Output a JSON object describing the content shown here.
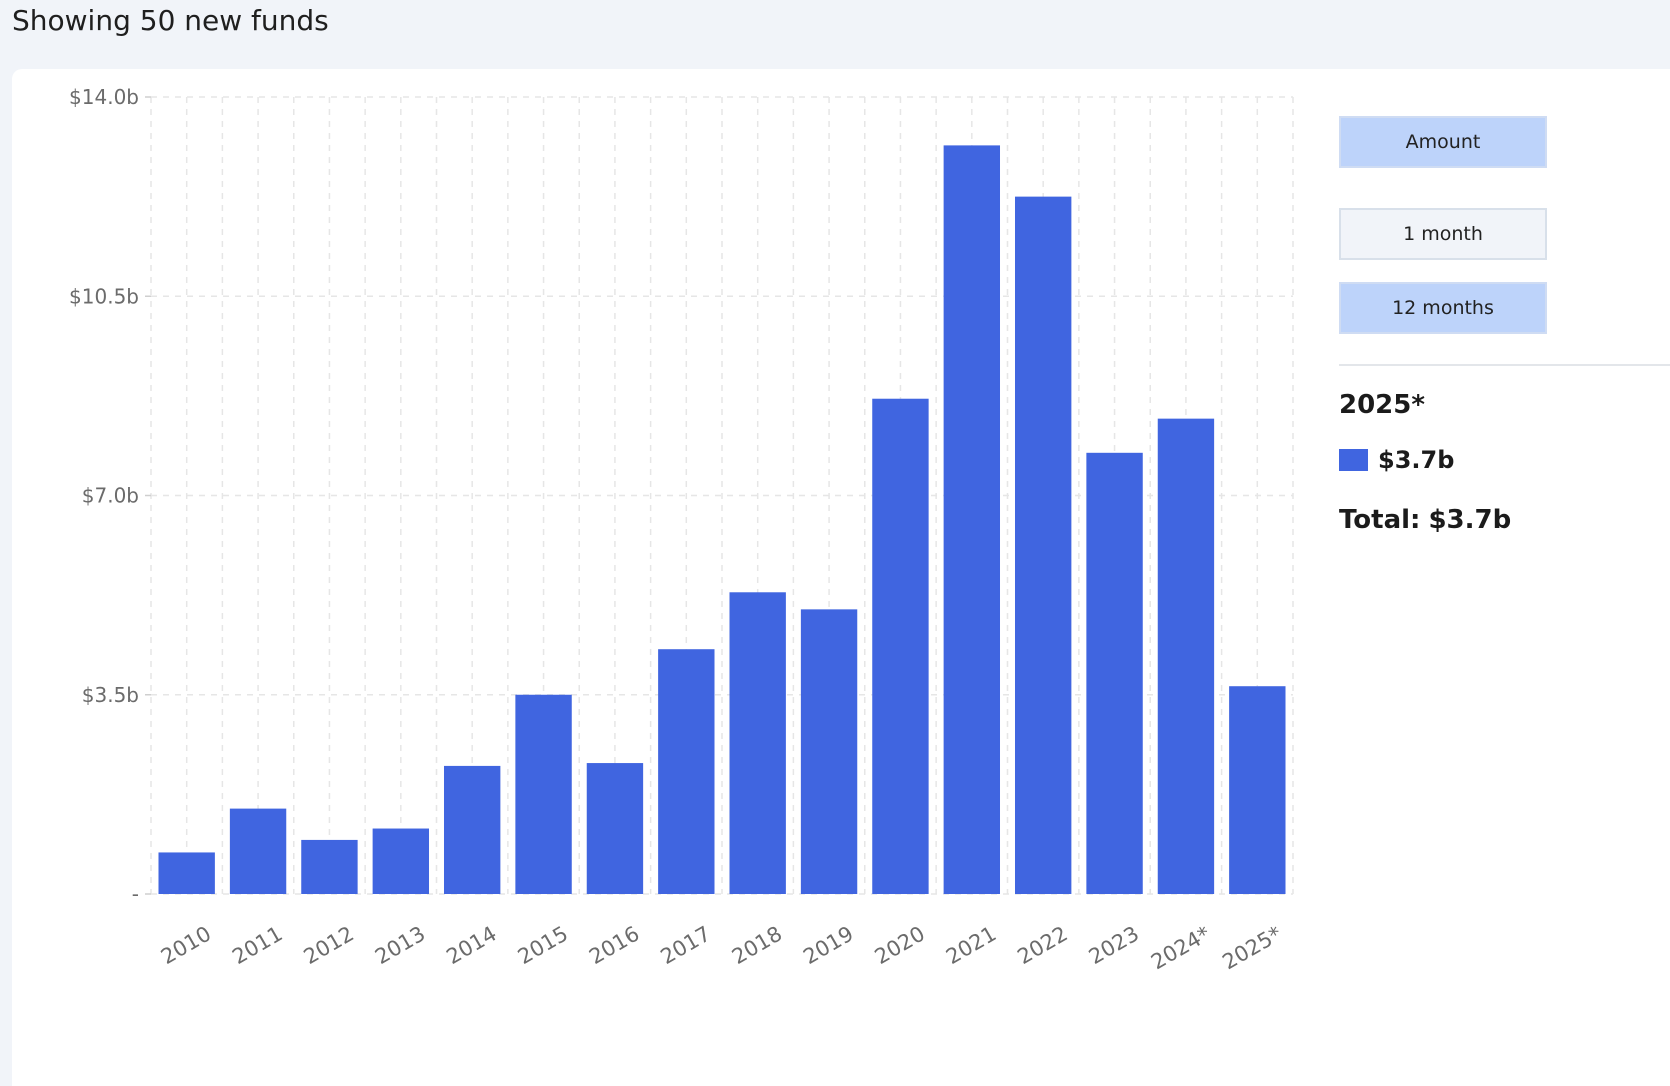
{
  "header": {
    "title": "Showing 50 new funds"
  },
  "controls": {
    "metric_label": "Amount",
    "period_options": [
      {
        "label": "1 month",
        "active": false
      },
      {
        "label": "12 months",
        "active": true
      }
    ]
  },
  "detail": {
    "year": "2025*",
    "series_value": "$3.7b",
    "total_prefix": "Total:",
    "total_value": "$3.7b"
  },
  "colors": {
    "bar": "#4065e0",
    "active_button": "#bdd3fa",
    "grid": "#e6e6e6"
  },
  "chart_data": {
    "type": "bar",
    "categories": [
      "2010",
      "2011",
      "2012",
      "2013",
      "2014",
      "2015",
      "2016",
      "2017",
      "2018",
      "2019",
      "2020",
      "2021",
      "2022",
      "2023",
      "2024*",
      "2025*"
    ],
    "values": [
      0.73,
      1.5,
      0.95,
      1.15,
      2.25,
      3.5,
      2.3,
      4.3,
      5.3,
      5.0,
      8.7,
      13.15,
      12.25,
      7.75,
      8.35,
      3.65
    ],
    "ytick_labels": [
      "-",
      "$3.5b",
      "$7.0b",
      "$10.5b",
      "$14.0b"
    ],
    "ytick_values": [
      0,
      3.5,
      7.0,
      10.5,
      14.0
    ],
    "ylim": [
      0,
      14.0
    ],
    "grid": true,
    "legend": "right"
  }
}
